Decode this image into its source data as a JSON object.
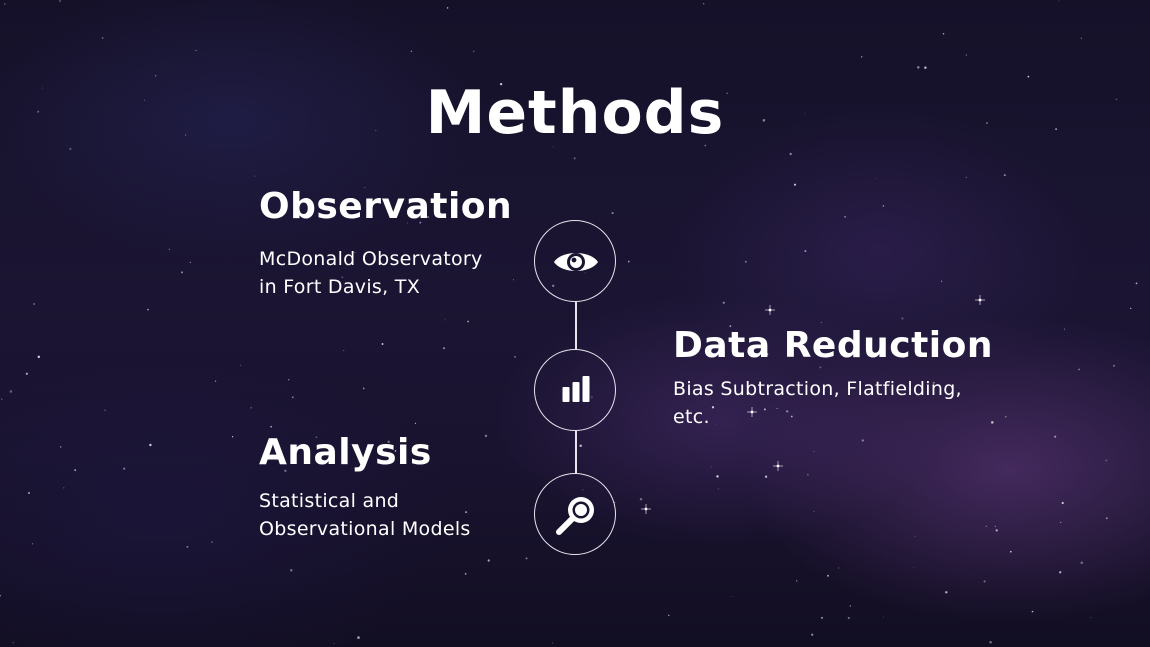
{
  "slide": {
    "title": "Methods"
  },
  "steps": [
    {
      "heading": "Observation",
      "lines": [
        "McDonald Observatory",
        "in Fort Davis, TX"
      ],
      "icon": "eye-icon"
    },
    {
      "heading": "Data Reduction",
      "lines": [
        "Bias Subtraction, Flatfielding,",
        "etc."
      ],
      "icon": "bar-chart-icon"
    },
    {
      "heading": "Analysis",
      "lines": [
        "Statistical and",
        "Observational Models"
      ],
      "icon": "magnifier-icon"
    }
  ],
  "colors": {
    "text": "#ffffff",
    "line": "#e8e4ee",
    "background": "#1a1430"
  }
}
